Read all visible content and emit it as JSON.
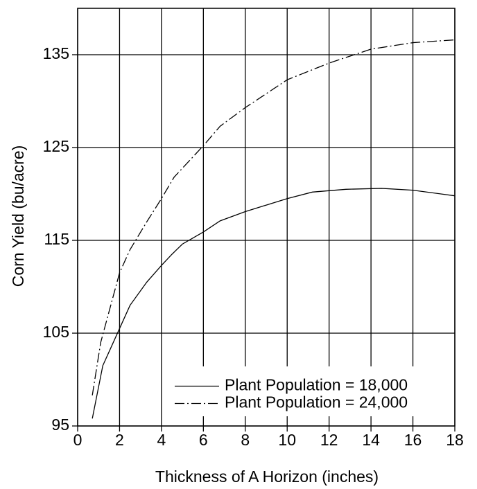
{
  "chart_data": {
    "type": "line",
    "x_label": "Thickness of A Horizon (inches)",
    "y_label": "Corn Yield (bu/acre)",
    "xlim": [
      0,
      18
    ],
    "ylim": [
      95,
      140
    ],
    "xticks": [
      0,
      2,
      4,
      6,
      8,
      10,
      12,
      14,
      16,
      18
    ],
    "yticks": [
      95,
      105,
      115,
      125,
      135
    ],
    "grid": true,
    "legend": "lower right",
    "series": [
      {
        "name": "Plant Population = 18,000",
        "color": "#000000",
        "linestyle": "solid",
        "x": [
          0.7,
          1.2,
          2,
          2.5,
          3.3,
          4,
          4.5,
          5,
          6,
          6.8,
          8,
          10,
          11.2,
          12.8,
          14.5,
          16,
          18
        ],
        "values": [
          95.8,
          101.5,
          105.5,
          108,
          110.5,
          112.3,
          113.5,
          114.6,
          115.9,
          117.1,
          118.1,
          119.5,
          120.2,
          120.5,
          120.6,
          120.4,
          119.8
        ]
      },
      {
        "name": "Plant Population = 24,000",
        "color": "#000000",
        "linestyle": "dashdot",
        "x": [
          0.7,
          1.1,
          2,
          2.5,
          3.3,
          4,
          4.6,
          6,
          6.8,
          8,
          10,
          12,
          14,
          16,
          18
        ],
        "values": [
          98.3,
          104,
          111.5,
          114,
          117,
          119.5,
          121.8,
          125.2,
          127.3,
          129.3,
          132.3,
          134.1,
          135.6,
          136.3,
          136.6
        ]
      }
    ]
  }
}
